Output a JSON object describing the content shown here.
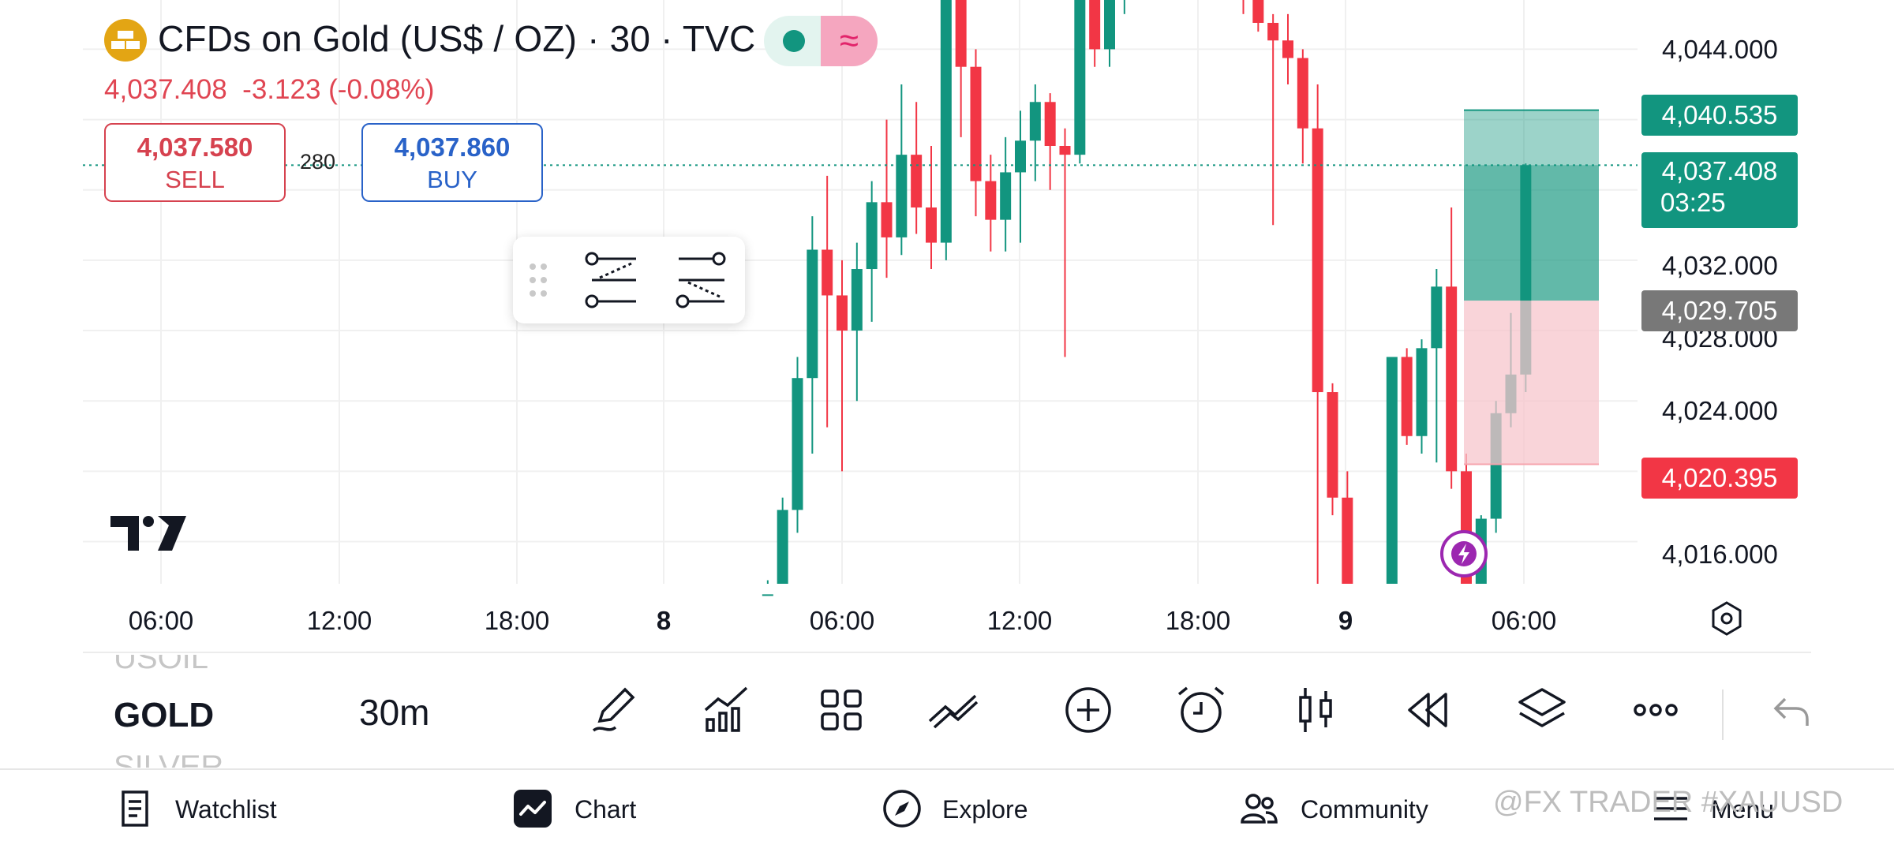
{
  "header": {
    "title": "CFDs on Gold (US$ / OZ) · 30 · TVC",
    "last_price": "4,037.408",
    "change": "-3.123 (-0.08%)",
    "sell_price": "4,037.580",
    "sell_label": "SELL",
    "buy_price": "4,037.860",
    "buy_label": "BUY",
    "spread": "280",
    "logo_icon": "gold-bars-icon",
    "pill_icons": [
      "market-open-dot-icon",
      "wave-icon"
    ]
  },
  "colors": {
    "up": "#12957f",
    "down": "#f23645",
    "sell": "#d6424f",
    "buy": "#2962c8",
    "profit_zone": "#12957f",
    "loss_zone": "#f7c6cc",
    "alert": "#9c27b0"
  },
  "price_axis": {
    "ticks": [
      "4,044.000",
      "4,032.000",
      "4,028.000",
      "4,024.000",
      "4,016.000"
    ],
    "tags": {
      "target": "4,040.535",
      "current": "4,037.408",
      "countdown": "03:25",
      "entry": "4,029.705",
      "stop": "4,020.395"
    }
  },
  "time_axis": {
    "ticks": [
      "06:00",
      "12:00",
      "18:00",
      "8",
      "06:00",
      "12:00",
      "18:00",
      "9",
      "06:00"
    ]
  },
  "chart_data": {
    "type": "candlestick",
    "ylim": [
      4013.6,
      4046.8
    ],
    "x_start": "7 Oct 02:00",
    "x_end": "9 Oct 07:30",
    "interval_minutes": 30,
    "candles": [
      {
        "t": "8 03:30",
        "o": 4012.5,
        "h": 4013.8,
        "l": 4012.0,
        "c": 4013.0
      },
      {
        "t": "8 04:00",
        "o": 4013.5,
        "h": 4018.5,
        "l": 4011.5,
        "c": 4017.8
      },
      {
        "t": "8 04:30",
        "o": 4017.8,
        "h": 4026.5,
        "l": 4016.5,
        "c": 4025.3
      },
      {
        "t": "8 05:00",
        "o": 4025.3,
        "h": 4034.5,
        "l": 4021.0,
        "c": 4032.6
      },
      {
        "t": "8 05:30",
        "o": 4032.6,
        "h": 4036.8,
        "l": 4022.5,
        "c": 4030.0
      },
      {
        "t": "8 06:00",
        "o": 4030.0,
        "h": 4032.0,
        "l": 4020.0,
        "c": 4028.0
      },
      {
        "t": "8 06:30",
        "o": 4028.0,
        "h": 4033.0,
        "l": 4024.0,
        "c": 4031.5
      },
      {
        "t": "8 07:00",
        "o": 4031.5,
        "h": 4036.5,
        "l": 4028.5,
        "c": 4035.3
      },
      {
        "t": "8 07:30",
        "o": 4035.3,
        "h": 4040.0,
        "l": 4031.0,
        "c": 4033.3
      },
      {
        "t": "8 08:00",
        "o": 4033.3,
        "h": 4042.0,
        "l": 4032.3,
        "c": 4038.0
      },
      {
        "t": "8 08:30",
        "o": 4038.0,
        "h": 4041.0,
        "l": 4033.5,
        "c": 4035.0
      },
      {
        "t": "8 09:00",
        "o": 4035.0,
        "h": 4038.5,
        "l": 4031.5,
        "c": 4033.0
      },
      {
        "t": "8 09:30",
        "o": 4033.0,
        "h": 4048.0,
        "l": 4032.0,
        "c": 4048.0
      },
      {
        "t": "8 10:00",
        "o": 4048.0,
        "h": 4048.0,
        "l": 4039.0,
        "c": 4043.0
      },
      {
        "t": "8 10:30",
        "o": 4043.0,
        "h": 4044.0,
        "l": 4034.5,
        "c": 4036.5
      },
      {
        "t": "8 11:00",
        "o": 4036.5,
        "h": 4038.0,
        "l": 4032.5,
        "c": 4034.3
      },
      {
        "t": "8 11:30",
        "o": 4034.3,
        "h": 4039.0,
        "l": 4032.5,
        "c": 4037.0
      },
      {
        "t": "8 12:00",
        "o": 4037.0,
        "h": 4040.5,
        "l": 4033.0,
        "c": 4038.8
      },
      {
        "t": "8 12:30",
        "o": 4038.8,
        "h": 4042.0,
        "l": 4036.5,
        "c": 4041.0
      },
      {
        "t": "8 13:00",
        "o": 4041.0,
        "h": 4041.5,
        "l": 4036.0,
        "c": 4038.5
      },
      {
        "t": "8 13:30",
        "o": 4038.5,
        "h": 4039.5,
        "l": 4026.5,
        "c": 4038.0
      },
      {
        "t": "8 14:00",
        "o": 4038.0,
        "h": 4047.5,
        "l": 4037.5,
        "c": 4047.0
      },
      {
        "t": "8 14:30",
        "o": 4047.0,
        "h": 4048.5,
        "l": 4043.0,
        "c": 4044.0
      },
      {
        "t": "8 15:00",
        "o": 4044.0,
        "h": 4048.5,
        "l": 4043.0,
        "c": 4047.5
      },
      {
        "t": "8 15:30",
        "o": 4047.5,
        "h": 4048.5,
        "l": 4046.0,
        "c": 4048.0
      },
      {
        "t": "8 19:30",
        "o": 4048.0,
        "h": 4048.5,
        "l": 4046.0,
        "c": 4047.0
      },
      {
        "t": "8 20:00",
        "o": 4047.0,
        "h": 4047.5,
        "l": 4045.0,
        "c": 4045.5
      },
      {
        "t": "8 20:30",
        "o": 4045.5,
        "h": 4046.0,
        "l": 4034.0,
        "c": 4044.5
      },
      {
        "t": "8 21:00",
        "o": 4044.5,
        "h": 4046.0,
        "l": 4042.0,
        "c": 4043.5
      },
      {
        "t": "8 21:30",
        "o": 4043.5,
        "h": 4044.0,
        "l": 4037.5,
        "c": 4039.5
      },
      {
        "t": "8 22:00",
        "o": 4039.5,
        "h": 4042.0,
        "l": 4013.0,
        "c": 4024.5
      },
      {
        "t": "8 22:30",
        "o": 4024.5,
        "h": 4025.0,
        "l": 4017.5,
        "c": 4018.5
      },
      {
        "t": "8 23:00",
        "o": 4018.5,
        "h": 4020.0,
        "l": 4012.0,
        "c": 4013.0
      },
      {
        "t": "9 00:30",
        "o": 4013.0,
        "h": 4026.5,
        "l": 4012.5,
        "c": 4026.5
      },
      {
        "t": "9 01:00",
        "o": 4026.5,
        "h": 4027.0,
        "l": 4021.5,
        "c": 4022.0
      },
      {
        "t": "9 01:30",
        "o": 4022.0,
        "h": 4027.5,
        "l": 4021.0,
        "c": 4027.0
      },
      {
        "t": "9 02:00",
        "o": 4027.0,
        "h": 4031.5,
        "l": 4020.5,
        "c": 4030.5
      },
      {
        "t": "9 02:30",
        "o": 4030.5,
        "h": 4035.0,
        "l": 4019.0,
        "c": 4020.0
      },
      {
        "t": "9 03:00",
        "o": 4020.0,
        "h": 4021.0,
        "l": 4013.0,
        "c": 4013.5
      },
      {
        "t": "9 03:30",
        "o": 4013.5,
        "h": 4017.5,
        "l": 4013.0,
        "c": 4017.3
      },
      {
        "t": "9 04:00",
        "o": 4017.3,
        "h": 4024.0,
        "l": 4016.5,
        "c": 4023.3
      },
      {
        "t": "9 04:30",
        "o": 4023.3,
        "h": 4029.0,
        "l": 4022.5,
        "c": 4025.5
      },
      {
        "t": "9 05:00",
        "o": 4025.5,
        "h": 4037.5,
        "l": 4024.5,
        "c": 4037.408
      }
    ],
    "position": {
      "type": "long",
      "entry": 4029.705,
      "target": 4040.535,
      "stop": 4020.395
    },
    "last_price_line": 4037.408
  },
  "bottom_toolbar": {
    "symbol_prev": "USOIL",
    "symbol_current": "GOLD",
    "symbol_next": "SILVER",
    "interval": "30m",
    "icons": [
      "pencil-icon",
      "indicators-icon",
      "grid-icon",
      "drawing-tools-icon",
      "add-icon",
      "alarm-icon",
      "candlestick-icon",
      "replay-icon",
      "layers-icon",
      "more-icon",
      "undo-icon"
    ]
  },
  "nav": {
    "items": [
      {
        "label": "Watchlist",
        "icon": "list-icon"
      },
      {
        "label": "Chart",
        "icon": "chart-icon"
      },
      {
        "label": "Explore",
        "icon": "compass-icon"
      },
      {
        "label": "Community",
        "icon": "people-icon"
      },
      {
        "label": "Menu",
        "icon": "menu-icon"
      }
    ]
  },
  "watermark": "@FX TRADER #XAUUSD"
}
